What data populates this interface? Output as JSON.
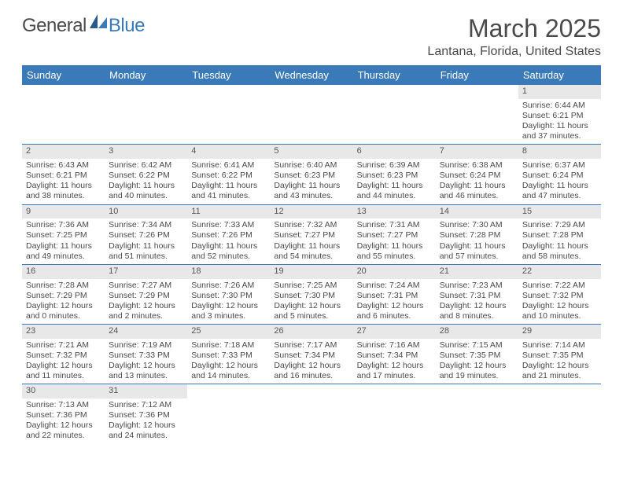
{
  "logo": {
    "general": "General",
    "blue": "Blue"
  },
  "title": "March 2025",
  "location": "Lantana, Florida, United States",
  "colors": {
    "header_bg": "#3a7ab8",
    "header_text": "#ffffff",
    "daynum_bg": "#e8e8e8",
    "border": "#3a7ab8",
    "text": "#4a4a4a"
  },
  "day_headers": [
    "Sunday",
    "Monday",
    "Tuesday",
    "Wednesday",
    "Thursday",
    "Friday",
    "Saturday"
  ],
  "weeks": [
    [
      null,
      null,
      null,
      null,
      null,
      null,
      {
        "n": "1",
        "sr": "Sunrise: 6:44 AM",
        "ss": "Sunset: 6:21 PM",
        "d1": "Daylight: 11 hours",
        "d2": "and 37 minutes."
      }
    ],
    [
      {
        "n": "2",
        "sr": "Sunrise: 6:43 AM",
        "ss": "Sunset: 6:21 PM",
        "d1": "Daylight: 11 hours",
        "d2": "and 38 minutes."
      },
      {
        "n": "3",
        "sr": "Sunrise: 6:42 AM",
        "ss": "Sunset: 6:22 PM",
        "d1": "Daylight: 11 hours",
        "d2": "and 40 minutes."
      },
      {
        "n": "4",
        "sr": "Sunrise: 6:41 AM",
        "ss": "Sunset: 6:22 PM",
        "d1": "Daylight: 11 hours",
        "d2": "and 41 minutes."
      },
      {
        "n": "5",
        "sr": "Sunrise: 6:40 AM",
        "ss": "Sunset: 6:23 PM",
        "d1": "Daylight: 11 hours",
        "d2": "and 43 minutes."
      },
      {
        "n": "6",
        "sr": "Sunrise: 6:39 AM",
        "ss": "Sunset: 6:23 PM",
        "d1": "Daylight: 11 hours",
        "d2": "and 44 minutes."
      },
      {
        "n": "7",
        "sr": "Sunrise: 6:38 AM",
        "ss": "Sunset: 6:24 PM",
        "d1": "Daylight: 11 hours",
        "d2": "and 46 minutes."
      },
      {
        "n": "8",
        "sr": "Sunrise: 6:37 AM",
        "ss": "Sunset: 6:24 PM",
        "d1": "Daylight: 11 hours",
        "d2": "and 47 minutes."
      }
    ],
    [
      {
        "n": "9",
        "sr": "Sunrise: 7:36 AM",
        "ss": "Sunset: 7:25 PM",
        "d1": "Daylight: 11 hours",
        "d2": "and 49 minutes."
      },
      {
        "n": "10",
        "sr": "Sunrise: 7:34 AM",
        "ss": "Sunset: 7:26 PM",
        "d1": "Daylight: 11 hours",
        "d2": "and 51 minutes."
      },
      {
        "n": "11",
        "sr": "Sunrise: 7:33 AM",
        "ss": "Sunset: 7:26 PM",
        "d1": "Daylight: 11 hours",
        "d2": "and 52 minutes."
      },
      {
        "n": "12",
        "sr": "Sunrise: 7:32 AM",
        "ss": "Sunset: 7:27 PM",
        "d1": "Daylight: 11 hours",
        "d2": "and 54 minutes."
      },
      {
        "n": "13",
        "sr": "Sunrise: 7:31 AM",
        "ss": "Sunset: 7:27 PM",
        "d1": "Daylight: 11 hours",
        "d2": "and 55 minutes."
      },
      {
        "n": "14",
        "sr": "Sunrise: 7:30 AM",
        "ss": "Sunset: 7:28 PM",
        "d1": "Daylight: 11 hours",
        "d2": "and 57 minutes."
      },
      {
        "n": "15",
        "sr": "Sunrise: 7:29 AM",
        "ss": "Sunset: 7:28 PM",
        "d1": "Daylight: 11 hours",
        "d2": "and 58 minutes."
      }
    ],
    [
      {
        "n": "16",
        "sr": "Sunrise: 7:28 AM",
        "ss": "Sunset: 7:29 PM",
        "d1": "Daylight: 12 hours",
        "d2": "and 0 minutes."
      },
      {
        "n": "17",
        "sr": "Sunrise: 7:27 AM",
        "ss": "Sunset: 7:29 PM",
        "d1": "Daylight: 12 hours",
        "d2": "and 2 minutes."
      },
      {
        "n": "18",
        "sr": "Sunrise: 7:26 AM",
        "ss": "Sunset: 7:30 PM",
        "d1": "Daylight: 12 hours",
        "d2": "and 3 minutes."
      },
      {
        "n": "19",
        "sr": "Sunrise: 7:25 AM",
        "ss": "Sunset: 7:30 PM",
        "d1": "Daylight: 12 hours",
        "d2": "and 5 minutes."
      },
      {
        "n": "20",
        "sr": "Sunrise: 7:24 AM",
        "ss": "Sunset: 7:31 PM",
        "d1": "Daylight: 12 hours",
        "d2": "and 6 minutes."
      },
      {
        "n": "21",
        "sr": "Sunrise: 7:23 AM",
        "ss": "Sunset: 7:31 PM",
        "d1": "Daylight: 12 hours",
        "d2": "and 8 minutes."
      },
      {
        "n": "22",
        "sr": "Sunrise: 7:22 AM",
        "ss": "Sunset: 7:32 PM",
        "d1": "Daylight: 12 hours",
        "d2": "and 10 minutes."
      }
    ],
    [
      {
        "n": "23",
        "sr": "Sunrise: 7:21 AM",
        "ss": "Sunset: 7:32 PM",
        "d1": "Daylight: 12 hours",
        "d2": "and 11 minutes."
      },
      {
        "n": "24",
        "sr": "Sunrise: 7:19 AM",
        "ss": "Sunset: 7:33 PM",
        "d1": "Daylight: 12 hours",
        "d2": "and 13 minutes."
      },
      {
        "n": "25",
        "sr": "Sunrise: 7:18 AM",
        "ss": "Sunset: 7:33 PM",
        "d1": "Daylight: 12 hours",
        "d2": "and 14 minutes."
      },
      {
        "n": "26",
        "sr": "Sunrise: 7:17 AM",
        "ss": "Sunset: 7:34 PM",
        "d1": "Daylight: 12 hours",
        "d2": "and 16 minutes."
      },
      {
        "n": "27",
        "sr": "Sunrise: 7:16 AM",
        "ss": "Sunset: 7:34 PM",
        "d1": "Daylight: 12 hours",
        "d2": "and 17 minutes."
      },
      {
        "n": "28",
        "sr": "Sunrise: 7:15 AM",
        "ss": "Sunset: 7:35 PM",
        "d1": "Daylight: 12 hours",
        "d2": "and 19 minutes."
      },
      {
        "n": "29",
        "sr": "Sunrise: 7:14 AM",
        "ss": "Sunset: 7:35 PM",
        "d1": "Daylight: 12 hours",
        "d2": "and 21 minutes."
      }
    ],
    [
      {
        "n": "30",
        "sr": "Sunrise: 7:13 AM",
        "ss": "Sunset: 7:36 PM",
        "d1": "Daylight: 12 hours",
        "d2": "and 22 minutes."
      },
      {
        "n": "31",
        "sr": "Sunrise: 7:12 AM",
        "ss": "Sunset: 7:36 PM",
        "d1": "Daylight: 12 hours",
        "d2": "and 24 minutes."
      },
      null,
      null,
      null,
      null,
      null
    ]
  ]
}
